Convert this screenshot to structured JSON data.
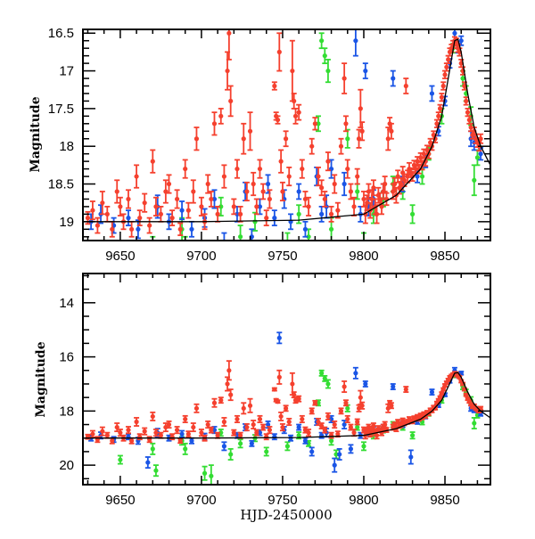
{
  "chart_data": [
    {
      "type": "scatter",
      "panel": "top",
      "title": "",
      "xlabel": "",
      "ylabel": "Magnitude",
      "xlim": [
        9627,
        9878
      ],
      "ylim": [
        19.25,
        16.45
      ],
      "y_inverted": true,
      "x_ticks": [
        9650,
        9700,
        9750,
        9800,
        9850
      ],
      "x_tick_labels": [
        "9650",
        "9700",
        "9750",
        "9800",
        "9850"
      ],
      "y_ticks": [
        16.5,
        17,
        17.5,
        18,
        18.5,
        19
      ],
      "y_tick_labels": [
        "16.5",
        "17",
        "17.5",
        "18",
        "18.5",
        "19"
      ],
      "grid": false,
      "legend": "none"
    },
    {
      "type": "scatter",
      "panel": "bottom",
      "title": "",
      "xlabel": "HJD-2450000",
      "ylabel": "Magnitude",
      "xlim": [
        9627,
        9878
      ],
      "ylim": [
        20.72,
        12.92
      ],
      "y_inverted": true,
      "x_ticks": [
        9650,
        9700,
        9750,
        9800,
        9850
      ],
      "x_tick_labels": [
        "9650",
        "9700",
        "9750",
        "9800",
        "9850"
      ],
      "y_ticks": [
        14,
        16,
        18,
        20
      ],
      "y_tick_labels": [
        "14",
        "16",
        "18",
        "20"
      ],
      "grid": false,
      "legend": "none"
    }
  ],
  "series": [
    {
      "name": "red",
      "color": "#f5402e",
      "points": [
        [
          9630,
          18.95,
          0.08
        ],
        [
          9633,
          18.85,
          0.12
        ],
        [
          9636,
          19.05,
          0.1
        ],
        [
          9639,
          18.75,
          0.15
        ],
        [
          9642,
          18.9,
          0.1
        ],
        [
          9645,
          19.1,
          0.1
        ],
        [
          9648,
          18.6,
          0.15
        ],
        [
          9650,
          18.8,
          0.12
        ],
        [
          9652,
          19.0,
          0.1
        ],
        [
          9655,
          18.7,
          0.12
        ],
        [
          9657,
          19.1,
          0.1
        ],
        [
          9660,
          18.4,
          0.15
        ],
        [
          9662,
          18.95,
          0.1
        ],
        [
          9665,
          18.75,
          0.12
        ],
        [
          9668,
          19.05,
          0.1
        ],
        [
          9670,
          18.2,
          0.15
        ],
        [
          9672,
          18.8,
          0.12
        ],
        [
          9675,
          18.9,
          0.1
        ],
        [
          9678,
          18.6,
          0.15
        ],
        [
          9680,
          18.5,
          0.12
        ],
        [
          9682,
          18.95,
          0.1
        ],
        [
          9685,
          18.7,
          0.12
        ],
        [
          9687,
          19.1,
          0.08
        ],
        [
          9690,
          18.3,
          0.12
        ],
        [
          9692,
          18.85,
          0.1
        ],
        [
          9695,
          18.6,
          0.15
        ],
        [
          9697,
          17.9,
          0.15
        ],
        [
          9700,
          18.8,
          0.12
        ],
        [
          9702,
          19.0,
          0.1
        ],
        [
          9704,
          18.5,
          0.12
        ],
        [
          9706,
          18.7,
          0.1
        ],
        [
          9708,
          17.7,
          0.15
        ],
        [
          9710,
          18.9,
          0.1
        ],
        [
          9712,
          17.6,
          0.1
        ],
        [
          9714,
          18.4,
          0.15
        ],
        [
          9716,
          17.0,
          0.25
        ],
        [
          9717,
          16.5,
          0.35
        ],
        [
          9718,
          17.4,
          0.2
        ],
        [
          9720,
          18.8,
          0.1
        ],
        [
          9722,
          18.3,
          0.12
        ],
        [
          9724,
          18.9,
          0.1
        ],
        [
          9726,
          17.9,
          0.2
        ],
        [
          9728,
          18.6,
          0.12
        ],
        [
          9730,
          17.8,
          0.25
        ],
        [
          9732,
          18.5,
          0.15
        ],
        [
          9734,
          18.8,
          0.1
        ],
        [
          9736,
          18.3,
          0.12
        ],
        [
          9738,
          18.6,
          0.1
        ],
        [
          9740,
          18.95,
          0.1
        ],
        [
          9742,
          18.7,
          0.12
        ],
        [
          9745,
          17.2,
          0.05
        ],
        [
          9746,
          17.6,
          0.05
        ],
        [
          9747,
          17.65,
          0.05
        ],
        [
          9748,
          16.75,
          0.25
        ],
        [
          9749,
          18.2,
          0.15
        ],
        [
          9750,
          18.6,
          0.12
        ],
        [
          9752,
          17.9,
          0.1
        ],
        [
          9754,
          18.4,
          0.12
        ],
        [
          9756,
          17.0,
          0.4
        ],
        [
          9757,
          17.4,
          0.1
        ],
        [
          9758,
          17.6,
          0.1
        ],
        [
          9760,
          17.55,
          0.1
        ],
        [
          9762,
          18.3,
          0.12
        ],
        [
          9764,
          18.7,
          0.1
        ],
        [
          9766,
          18.8,
          0.12
        ],
        [
          9768,
          18.0,
          0.1
        ],
        [
          9770,
          17.7,
          0.08
        ],
        [
          9772,
          18.4,
          0.12
        ],
        [
          9774,
          18.55,
          0.1
        ],
        [
          9776,
          18.7,
          0.1
        ],
        [
          9778,
          18.2,
          0.12
        ],
        [
          9780,
          18.9,
          0.1
        ],
        [
          9782,
          18.5,
          0.12
        ],
        [
          9784,
          18.85,
          0.1
        ],
        [
          9786,
          18.0,
          0.1
        ],
        [
          9788,
          17.1,
          0.2
        ],
        [
          9789,
          17.7,
          0.1
        ],
        [
          9790,
          18.3,
          0.12
        ],
        [
          9792,
          18.6,
          0.1
        ],
        [
          9794,
          18.8,
          0.12
        ],
        [
          9796,
          18.4,
          0.1
        ],
        [
          9797,
          17.9,
          0.12
        ],
        [
          9798,
          17.5,
          0.25
        ],
        [
          9799,
          17.8,
          0.12
        ],
        [
          9800,
          18.7,
          0.1
        ],
        [
          9801,
          18.9,
          0.12
        ],
        [
          9802,
          18.75,
          0.1
        ],
        [
          9803,
          18.6,
          0.1
        ],
        [
          9804,
          18.85,
          0.1
        ],
        [
          9805,
          18.7,
          0.12
        ],
        [
          9806,
          18.55,
          0.1
        ],
        [
          9807,
          18.8,
          0.1
        ],
        [
          9808,
          18.9,
          0.12
        ],
        [
          9809,
          18.65,
          0.1
        ],
        [
          9810,
          18.7,
          0.08
        ],
        [
          9811,
          18.8,
          0.1
        ],
        [
          9812,
          18.6,
          0.1
        ],
        [
          9813,
          18.5,
          0.1
        ],
        [
          9814,
          18.7,
          0.08
        ],
        [
          9815,
          17.9,
          0.15
        ],
        [
          9816,
          17.7,
          0.08
        ],
        [
          9817,
          17.8,
          0.1
        ],
        [
          9818,
          18.6,
          0.1
        ],
        [
          9819,
          18.5,
          0.08
        ],
        [
          9820,
          18.65,
          0.1
        ],
        [
          9821,
          18.4,
          0.08
        ],
        [
          9822,
          18.55,
          0.08
        ],
        [
          9823,
          18.5,
          0.08
        ],
        [
          9824,
          18.35,
          0.08
        ],
        [
          9825,
          18.45,
          0.08
        ],
        [
          9826,
          17.2,
          0.1
        ],
        [
          9827,
          18.4,
          0.08
        ],
        [
          9828,
          18.3,
          0.08
        ],
        [
          9829,
          18.35,
          0.06
        ],
        [
          9830,
          18.4,
          0.06
        ],
        [
          9831,
          18.25,
          0.06
        ],
        [
          9832,
          18.3,
          0.06
        ],
        [
          9833,
          18.2,
          0.06
        ],
        [
          9834,
          18.3,
          0.06
        ],
        [
          9835,
          18.15,
          0.06
        ],
        [
          9836,
          18.25,
          0.06
        ],
        [
          9837,
          18.1,
          0.06
        ],
        [
          9838,
          18.2,
          0.06
        ],
        [
          9839,
          18.05,
          0.06
        ],
        [
          9840,
          18.1,
          0.06
        ],
        [
          9841,
          17.95,
          0.05
        ],
        [
          9842,
          18.0,
          0.05
        ],
        [
          9843,
          17.85,
          0.05
        ],
        [
          9844,
          17.9,
          0.05
        ],
        [
          9845,
          17.7,
          0.05
        ],
        [
          9846,
          17.6,
          0.05
        ],
        [
          9847,
          17.5,
          0.05
        ],
        [
          9848,
          17.35,
          0.05
        ],
        [
          9849,
          17.2,
          0.05
        ],
        [
          9850,
          17.05,
          0.05
        ],
        [
          9851,
          16.95,
          0.05
        ],
        [
          9852,
          16.85,
          0.05
        ],
        [
          9853,
          16.75,
          0.05
        ],
        [
          9854,
          16.7,
          0.05
        ],
        [
          9855,
          16.65,
          0.05
        ],
        [
          9856,
          16.6,
          0.05
        ],
        [
          9857,
          16.62,
          0.05
        ],
        [
          9858,
          16.7,
          0.05
        ],
        [
          9859,
          16.75,
          0.05
        ],
        [
          9860,
          16.9,
          0.05
        ],
        [
          9861,
          17.0,
          0.05
        ],
        [
          9862,
          17.2,
          0.05
        ],
        [
          9863,
          17.4,
          0.05
        ],
        [
          9864,
          17.55,
          0.05
        ],
        [
          9865,
          17.65,
          0.05
        ],
        [
          9866,
          17.75,
          0.05
        ],
        [
          9867,
          17.85,
          0.05
        ],
        [
          9868,
          17.8,
          0.05
        ],
        [
          9869,
          17.9,
          0.06
        ],
        [
          9870,
          17.95,
          0.06
        ],
        [
          9871,
          18.0,
          0.06
        ],
        [
          9872,
          17.9,
          0.06
        ]
      ]
    },
    {
      "name": "blue",
      "color": "#1a55e6",
      "points": [
        [
          9632,
          19.0,
          0.1
        ],
        [
          9638,
          18.9,
          0.12
        ],
        [
          9646,
          19.05,
          0.1
        ],
        [
          9655,
          18.95,
          0.1
        ],
        [
          9661,
          19.1,
          0.12
        ],
        [
          9667,
          19.9,
          0.2
        ],
        [
          9673,
          18.8,
          0.15
        ],
        [
          9680,
          19.0,
          0.1
        ],
        [
          9688,
          18.85,
          0.12
        ],
        [
          9694,
          19.1,
          0.1
        ],
        [
          9702,
          18.95,
          0.12
        ],
        [
          9708,
          18.7,
          0.12
        ],
        [
          9714,
          19.3,
          0.15
        ],
        [
          9722,
          18.9,
          0.1
        ],
        [
          9727,
          18.6,
          0.12
        ],
        [
          9731,
          19.2,
          0.1
        ],
        [
          9736,
          18.8,
          0.1
        ],
        [
          9741,
          18.5,
          0.12
        ],
        [
          9745,
          18.95,
          0.1
        ],
        [
          9748,
          15.3,
          0.2
        ],
        [
          9751,
          18.7,
          0.12
        ],
        [
          9755,
          19.0,
          0.1
        ],
        [
          9760,
          18.6,
          0.1
        ],
        [
          9764,
          19.1,
          0.1
        ],
        [
          9768,
          19.5,
          0.15
        ],
        [
          9771,
          18.4,
          0.12
        ],
        [
          9774,
          18.9,
          0.1
        ],
        [
          9777,
          18.8,
          0.15
        ],
        [
          9780,
          18.3,
          0.12
        ],
        [
          9782,
          20.0,
          0.25
        ],
        [
          9785,
          19.6,
          0.2
        ],
        [
          9788,
          18.5,
          0.15
        ],
        [
          9792,
          19.4,
          0.15
        ],
        [
          9795,
          16.6,
          0.2
        ],
        [
          9798,
          18.9,
          0.1
        ],
        [
          9801,
          17.0,
          0.1
        ],
        [
          9803,
          18.8,
          0.12
        ],
        [
          9806,
          18.7,
          0.12
        ],
        [
          9812,
          18.6,
          0.1
        ],
        [
          9818,
          17.1,
          0.1
        ],
        [
          9824,
          18.5,
          0.1
        ],
        [
          9829,
          19.7,
          0.25
        ],
        [
          9833,
          18.4,
          0.08
        ],
        [
          9838,
          18.2,
          0.08
        ],
        [
          9842,
          17.3,
          0.1
        ],
        [
          9846,
          17.8,
          0.06
        ],
        [
          9850,
          17.4,
          0.06
        ],
        [
          9853,
          16.9,
          0.06
        ],
        [
          9856,
          16.5,
          0.1
        ],
        [
          9858,
          16.7,
          0.06
        ],
        [
          9860,
          16.6,
          0.06
        ],
        [
          9866,
          17.9,
          0.1
        ],
        [
          9868,
          17.95,
          0.1
        ],
        [
          9872,
          18.1,
          0.08
        ]
      ]
    },
    {
      "name": "green",
      "color": "#33dd33",
      "points": [
        [
          9650,
          19.8,
          0.15
        ],
        [
          9670,
          19.4,
          0.2
        ],
        [
          9672,
          20.2,
          0.2
        ],
        [
          9688,
          19.1,
          0.15
        ],
        [
          9690,
          19.4,
          0.2
        ],
        [
          9702,
          20.3,
          0.25
        ],
        [
          9706,
          20.4,
          0.4
        ],
        [
          9712,
          18.8,
          0.12
        ],
        [
          9718,
          19.6,
          0.2
        ],
        [
          9724,
          19.2,
          0.15
        ],
        [
          9733,
          19.0,
          0.12
        ],
        [
          9740,
          19.5,
          0.15
        ],
        [
          9753,
          19.3,
          0.15
        ],
        [
          9760,
          18.9,
          0.12
        ],
        [
          9766,
          19.2,
          0.1
        ],
        [
          9772,
          17.7,
          0.1
        ],
        [
          9774,
          16.6,
          0.1
        ],
        [
          9776,
          16.8,
          0.1
        ],
        [
          9778,
          17.0,
          0.15
        ],
        [
          9780,
          19.1,
          0.15
        ],
        [
          9783,
          19.6,
          0.15
        ],
        [
          9790,
          17.9,
          0.12
        ],
        [
          9796,
          18.6,
          0.1
        ],
        [
          9800,
          19.3,
          0.15
        ],
        [
          9806,
          18.9,
          0.12
        ],
        [
          9812,
          18.7,
          0.1
        ],
        [
          9818,
          18.5,
          0.1
        ],
        [
          9824,
          18.6,
          0.1
        ],
        [
          9830,
          18.9,
          0.12
        ],
        [
          9836,
          18.4,
          0.1
        ],
        [
          9840,
          18.1,
          0.08
        ],
        [
          9848,
          17.6,
          0.1
        ],
        [
          9855,
          16.7,
          0.06
        ],
        [
          9861,
          17.1,
          0.1
        ],
        [
          9863,
          17.3,
          0.1
        ],
        [
          9866,
          17.6,
          0.12
        ],
        [
          9868,
          18.45,
          0.2
        ],
        [
          9870,
          18.15,
          0.1
        ]
      ]
    }
  ],
  "model_line": {
    "color": "#000000",
    "points": [
      [
        9627,
        19.0
      ],
      [
        9700,
        19.0
      ],
      [
        9760,
        18.98
      ],
      [
        9800,
        18.9
      ],
      [
        9820,
        18.65
      ],
      [
        9835,
        18.3
      ],
      [
        9842,
        18.0
      ],
      [
        9848,
        17.6
      ],
      [
        9852,
        17.1
      ],
      [
        9856,
        16.6
      ],
      [
        9858,
        16.58
      ],
      [
        9860,
        16.75
      ],
      [
        9864,
        17.3
      ],
      [
        9868,
        17.75
      ],
      [
        9872,
        18.0
      ],
      [
        9878,
        18.25
      ]
    ]
  }
}
